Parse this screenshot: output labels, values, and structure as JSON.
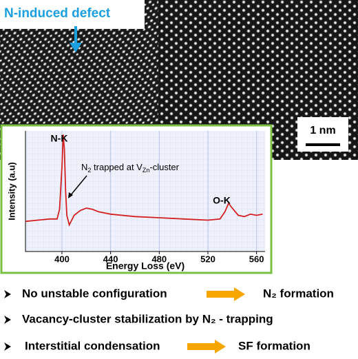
{
  "image_label": "N-induced defect",
  "scale_bar": "1 nm",
  "chart_data": {
    "type": "line",
    "xlabel": "Energy Loss (eV)",
    "ylabel": "Intensity (a.u)",
    "x": [
      370,
      380,
      390,
      396,
      398,
      400,
      401,
      402,
      403,
      404,
      406,
      410,
      415,
      420,
      425,
      430,
      440,
      460,
      480,
      500,
      520,
      530,
      534,
      537,
      540,
      545,
      550,
      555,
      560,
      565
    ],
    "values": [
      0.25,
      0.26,
      0.27,
      0.27,
      0.35,
      0.7,
      0.97,
      0.85,
      0.5,
      0.3,
      0.22,
      0.3,
      0.34,
      0.36,
      0.35,
      0.33,
      0.31,
      0.29,
      0.28,
      0.27,
      0.26,
      0.27,
      0.33,
      0.4,
      0.36,
      0.3,
      0.29,
      0.31,
      0.3,
      0.31
    ],
    "color": "#d42020",
    "xlim": [
      370,
      567
    ],
    "ylim": [
      0,
      1
    ],
    "xticks": [
      400,
      440,
      480,
      520,
      560
    ],
    "grid": true,
    "peak_labels": [
      "N-K",
      "O-K"
    ],
    "annotation": [
      "N",
      "2",
      " trapped at V",
      "Zn",
      "-cluster"
    ]
  },
  "bullets": [
    {
      "text": "No  unstable configuration",
      "result": "N₂  formation"
    },
    {
      "text": "Vacancy-cluster stabilization by N₂ - trapping"
    },
    {
      "text": "Interstitial condensation",
      "result": "SF formation"
    }
  ]
}
